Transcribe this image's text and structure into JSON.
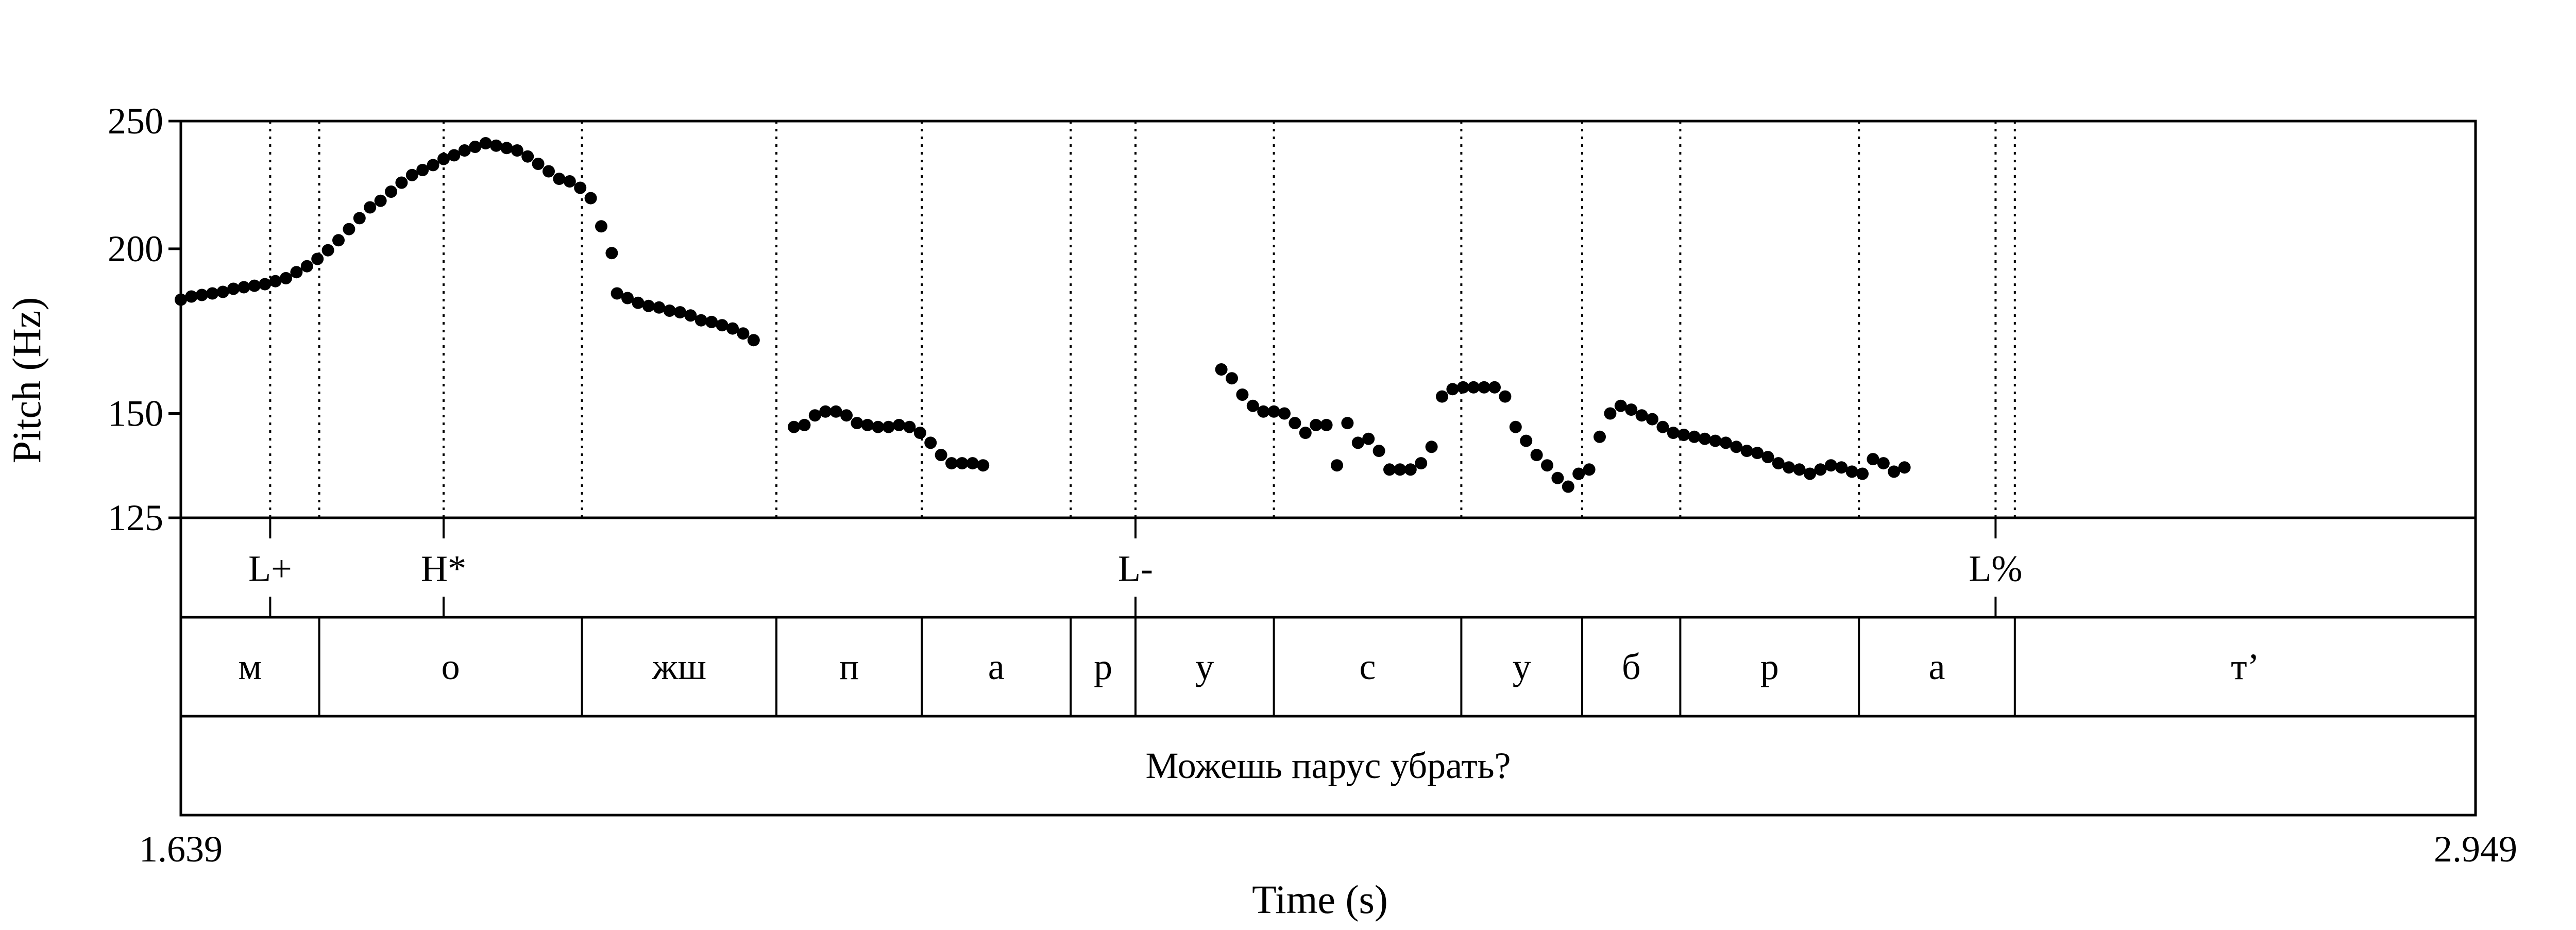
{
  "chart_data": {
    "type": "scatter",
    "xlabel": "Time (s)",
    "ylabel": "Pitch (Hz)",
    "xlim": [
      1.639,
      2.949
    ],
    "ylim": [
      125,
      250
    ],
    "y_scale": "log",
    "x_tick_labels": [
      "1.639",
      "2.949"
    ],
    "y_ticks": [
      250,
      200,
      150,
      125
    ],
    "y_tick_labels": [
      "250",
      "200",
      "150",
      "125"
    ],
    "series": [
      {
        "points": [
          [
            1.639,
            183
          ],
          [
            1.645,
            184
          ],
          [
            1.651,
            184.5
          ],
          [
            1.657,
            185
          ],
          [
            1.663,
            185.5
          ],
          [
            1.669,
            186.5
          ],
          [
            1.675,
            187
          ],
          [
            1.681,
            187.5
          ],
          [
            1.687,
            188
          ],
          [
            1.693,
            189
          ],
          [
            1.699,
            190
          ],
          [
            1.705,
            192
          ],
          [
            1.711,
            194
          ],
          [
            1.717,
            196.5
          ],
          [
            1.723,
            199.5
          ],
          [
            1.729,
            203
          ],
          [
            1.735,
            207
          ],
          [
            1.741,
            211
          ],
          [
            1.747,
            215
          ],
          [
            1.753,
            217.5
          ],
          [
            1.759,
            221
          ],
          [
            1.765,
            224.5
          ],
          [
            1.771,
            227.5
          ],
          [
            1.777,
            229.5
          ],
          [
            1.783,
            231.5
          ],
          [
            1.789,
            234
          ],
          [
            1.795,
            235.5
          ],
          [
            1.801,
            237.5
          ],
          [
            1.807,
            239
          ],
          [
            1.813,
            240.5
          ],
          [
            1.819,
            239.5
          ],
          [
            1.825,
            238.5
          ],
          [
            1.831,
            237.5
          ],
          [
            1.837,
            235
          ],
          [
            1.843,
            232
          ],
          [
            1.849,
            229
          ],
          [
            1.855,
            226
          ],
          [
            1.861,
            225
          ],
          [
            1.867,
            222.5
          ],
          [
            1.873,
            218.5
          ],
          [
            1.879,
            208
          ],
          [
            1.885,
            198.5
          ],
          [
            1.888,
            185
          ],
          [
            1.894,
            183.5
          ],
          [
            1.9,
            182
          ],
          [
            1.906,
            181
          ],
          [
            1.912,
            180.5
          ],
          [
            1.918,
            179.5
          ],
          [
            1.924,
            179
          ],
          [
            1.93,
            178
          ],
          [
            1.936,
            176.5
          ],
          [
            1.942,
            176
          ],
          [
            1.948,
            175
          ],
          [
            1.954,
            174
          ],
          [
            1.96,
            172.5
          ],
          [
            1.966,
            170.5
          ],
          [
            1.989,
            146.5
          ],
          [
            1.995,
            147
          ],
          [
            2.001,
            149.5
          ],
          [
            2.007,
            150.5
          ],
          [
            2.013,
            150.5
          ],
          [
            2.019,
            149.5
          ],
          [
            2.025,
            147.5
          ],
          [
            2.031,
            147
          ],
          [
            2.037,
            146.5
          ],
          [
            2.043,
            146.5
          ],
          [
            2.049,
            147
          ],
          [
            2.055,
            146.5
          ],
          [
            2.061,
            145
          ],
          [
            2.067,
            142.5
          ],
          [
            2.073,
            139.5
          ],
          [
            2.079,
            137.5
          ],
          [
            2.085,
            137.5
          ],
          [
            2.091,
            137.5
          ],
          [
            2.097,
            137
          ],
          [
            2.233,
            162
          ],
          [
            2.239,
            159.5
          ],
          [
            2.245,
            155
          ],
          [
            2.251,
            152
          ],
          [
            2.257,
            150.5
          ],
          [
            2.263,
            150.5
          ],
          [
            2.269,
            150
          ],
          [
            2.275,
            147.5
          ],
          [
            2.281,
            145
          ],
          [
            2.287,
            147
          ],
          [
            2.293,
            147
          ],
          [
            2.299,
            137
          ],
          [
            2.305,
            147.5
          ],
          [
            2.311,
            142.5
          ],
          [
            2.317,
            143.5
          ],
          [
            2.323,
            140.5
          ],
          [
            2.329,
            136
          ],
          [
            2.335,
            136
          ],
          [
            2.341,
            136
          ],
          [
            2.347,
            137.5
          ],
          [
            2.353,
            141.5
          ],
          [
            2.359,
            154.5
          ],
          [
            2.365,
            156.5
          ],
          [
            2.371,
            157
          ],
          [
            2.377,
            157
          ],
          [
            2.383,
            157
          ],
          [
            2.389,
            157
          ],
          [
            2.395,
            154.5
          ],
          [
            2.401,
            146.5
          ],
          [
            2.407,
            143
          ],
          [
            2.413,
            139.5
          ],
          [
            2.419,
            137
          ],
          [
            2.425,
            134
          ],
          [
            2.431,
            132
          ],
          [
            2.437,
            135
          ],
          [
            2.443,
            136
          ],
          [
            2.449,
            144
          ],
          [
            2.455,
            150
          ],
          [
            2.461,
            152
          ],
          [
            2.467,
            151
          ],
          [
            2.473,
            149.5
          ],
          [
            2.479,
            148.5
          ],
          [
            2.485,
            146.5
          ],
          [
            2.491,
            145
          ],
          [
            2.497,
            144.5
          ],
          [
            2.503,
            144
          ],
          [
            2.509,
            143.5
          ],
          [
            2.515,
            143
          ],
          [
            2.521,
            142.5
          ],
          [
            2.527,
            141.5
          ],
          [
            2.533,
            140.5
          ],
          [
            2.539,
            140
          ],
          [
            2.545,
            139
          ],
          [
            2.551,
            137.5
          ],
          [
            2.557,
            136.5
          ],
          [
            2.563,
            136
          ],
          [
            2.569,
            135
          ],
          [
            2.575,
            136
          ],
          [
            2.581,
            137
          ],
          [
            2.587,
            136.5
          ],
          [
            2.593,
            135.5
          ],
          [
            2.599,
            135
          ],
          [
            2.605,
            138.5
          ],
          [
            2.611,
            137.5
          ],
          [
            2.617,
            135.5
          ],
          [
            2.623,
            136.5
          ]
        ]
      }
    ],
    "tiers": [
      {
        "type": "point",
        "items": [
          {
            "t": 1.69,
            "label": "L+"
          },
          {
            "t": 1.789,
            "label": "H*"
          },
          {
            "t": 2.184,
            "label": "L-"
          },
          {
            "t": 2.675,
            "label": "L%"
          }
        ]
      },
      {
        "type": "interval",
        "boundaries": [
          1.639,
          1.718,
          1.868,
          1.979,
          2.062,
          2.147,
          2.184,
          2.263,
          2.37,
          2.439,
          2.495,
          2.597,
          2.686,
          2.949
        ],
        "labels": [
          "м",
          "о",
          "жш",
          "п",
          "а",
          "р",
          "у",
          "с",
          "у",
          "б",
          "р",
          "а",
          "т’"
        ]
      },
      {
        "type": "interval",
        "boundaries": [
          1.639,
          2.949
        ],
        "labels": [
          "Можешь парус убрать?"
        ]
      }
    ],
    "grid": "dotted vertical lines at segment boundaries in the pitch panel",
    "legend": "none"
  }
}
